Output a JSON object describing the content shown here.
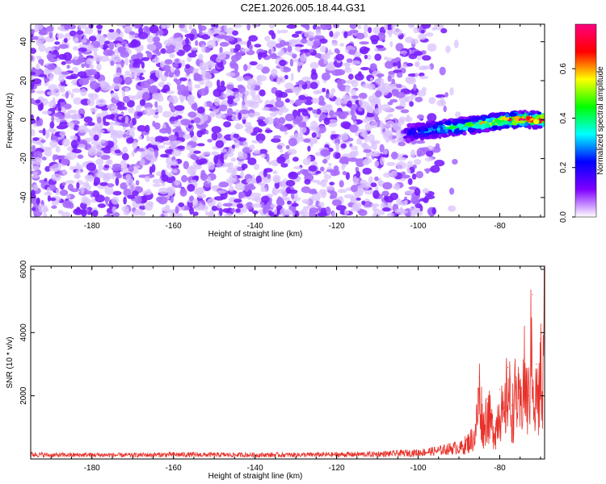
{
  "title": "C2E1.2026.005.18.44.G31",
  "colors": {
    "snr_line": "#e8312a",
    "frame": "#000000",
    "background": "#ffffff"
  },
  "chart_data": [
    {
      "type": "heatmap",
      "title": "C2E1.2026.005.18.44.G31",
      "xlabel": "Height of straight line (km)",
      "ylabel": "Frequency (Hz)",
      "xlim": [
        -195,
        -69
      ],
      "ylim": [
        -50,
        49
      ],
      "xticks": [
        -180,
        -160,
        -140,
        -120,
        -100,
        -80
      ],
      "xtick_labels": [
        "-180",
        "-160",
        "-140",
        "-120",
        "-100",
        "-80"
      ],
      "yticks": [
        -40,
        -20,
        0,
        20,
        40
      ],
      "ytick_labels": [
        "-40",
        "-20",
        "0",
        "20",
        "40"
      ],
      "colorbar": {
        "label": "Normalized spectral amplitude",
        "range": [
          0,
          0.78
        ],
        "ticks": [
          0,
          0.2,
          0.4,
          0.6
        ],
        "tick_labels": [
          "0.0",
          "0.2",
          "0.4",
          "0.6"
        ],
        "colormap": [
          "#ffffff",
          "#8000ff",
          "#0000ff",
          "#00ffff",
          "#00ff00",
          "#ffff00",
          "#ff0000",
          "#ff0080"
        ]
      },
      "noise_region": {
        "x": [
          -195,
          -90
        ],
        "y": [
          -50,
          49
        ],
        "amplitude": [
          0.0,
          0.1
        ]
      },
      "signal_band": {
        "x": [
          -103,
          -69
        ],
        "frequency_center": 0,
        "frequency_start_at_left": -7,
        "bandwidth_hz": 8,
        "peak_amplitude": 0.75
      },
      "grid": false
    },
    {
      "type": "line",
      "xlabel": "Height of straight line (km)",
      "ylabel": "SNR (10 * v/v)",
      "xlim": [
        -195,
        -69
      ],
      "ylim": [
        0,
        6100
      ],
      "xticks": [
        -180,
        -160,
        -140,
        -120,
        -100,
        -80
      ],
      "xtick_labels": [
        "-180",
        "-160",
        "-140",
        "-120",
        "-100",
        "-80"
      ],
      "yticks": [
        2000,
        4000,
        6000
      ],
      "ytick_labels": [
        "2000",
        "4000",
        "6000"
      ],
      "series": [
        {
          "color": "#e8312a",
          "x": [
            -195,
            -190,
            -180,
            -170,
            -160,
            -150,
            -140,
            -130,
            -120,
            -110,
            -100,
            -95,
            -90,
            -88,
            -86,
            -85,
            -84,
            -83,
            -82,
            -81,
            -80,
            -79,
            -78,
            -77,
            -76,
            -75,
            -74,
            -73,
            -72,
            -71.5,
            -71,
            -70.5,
            -70,
            -69.5,
            -69
          ],
          "y": [
            150,
            120,
            130,
            120,
            140,
            130,
            130,
            130,
            140,
            150,
            200,
            260,
            380,
            600,
            900,
            2600,
            1200,
            1900,
            1300,
            1100,
            2200,
            1400,
            2900,
            1700,
            2600,
            1800,
            3200,
            2000,
            5200,
            1200,
            3000,
            1700,
            3800,
            1900,
            5900
          ]
        }
      ],
      "grid": false
    }
  ]
}
